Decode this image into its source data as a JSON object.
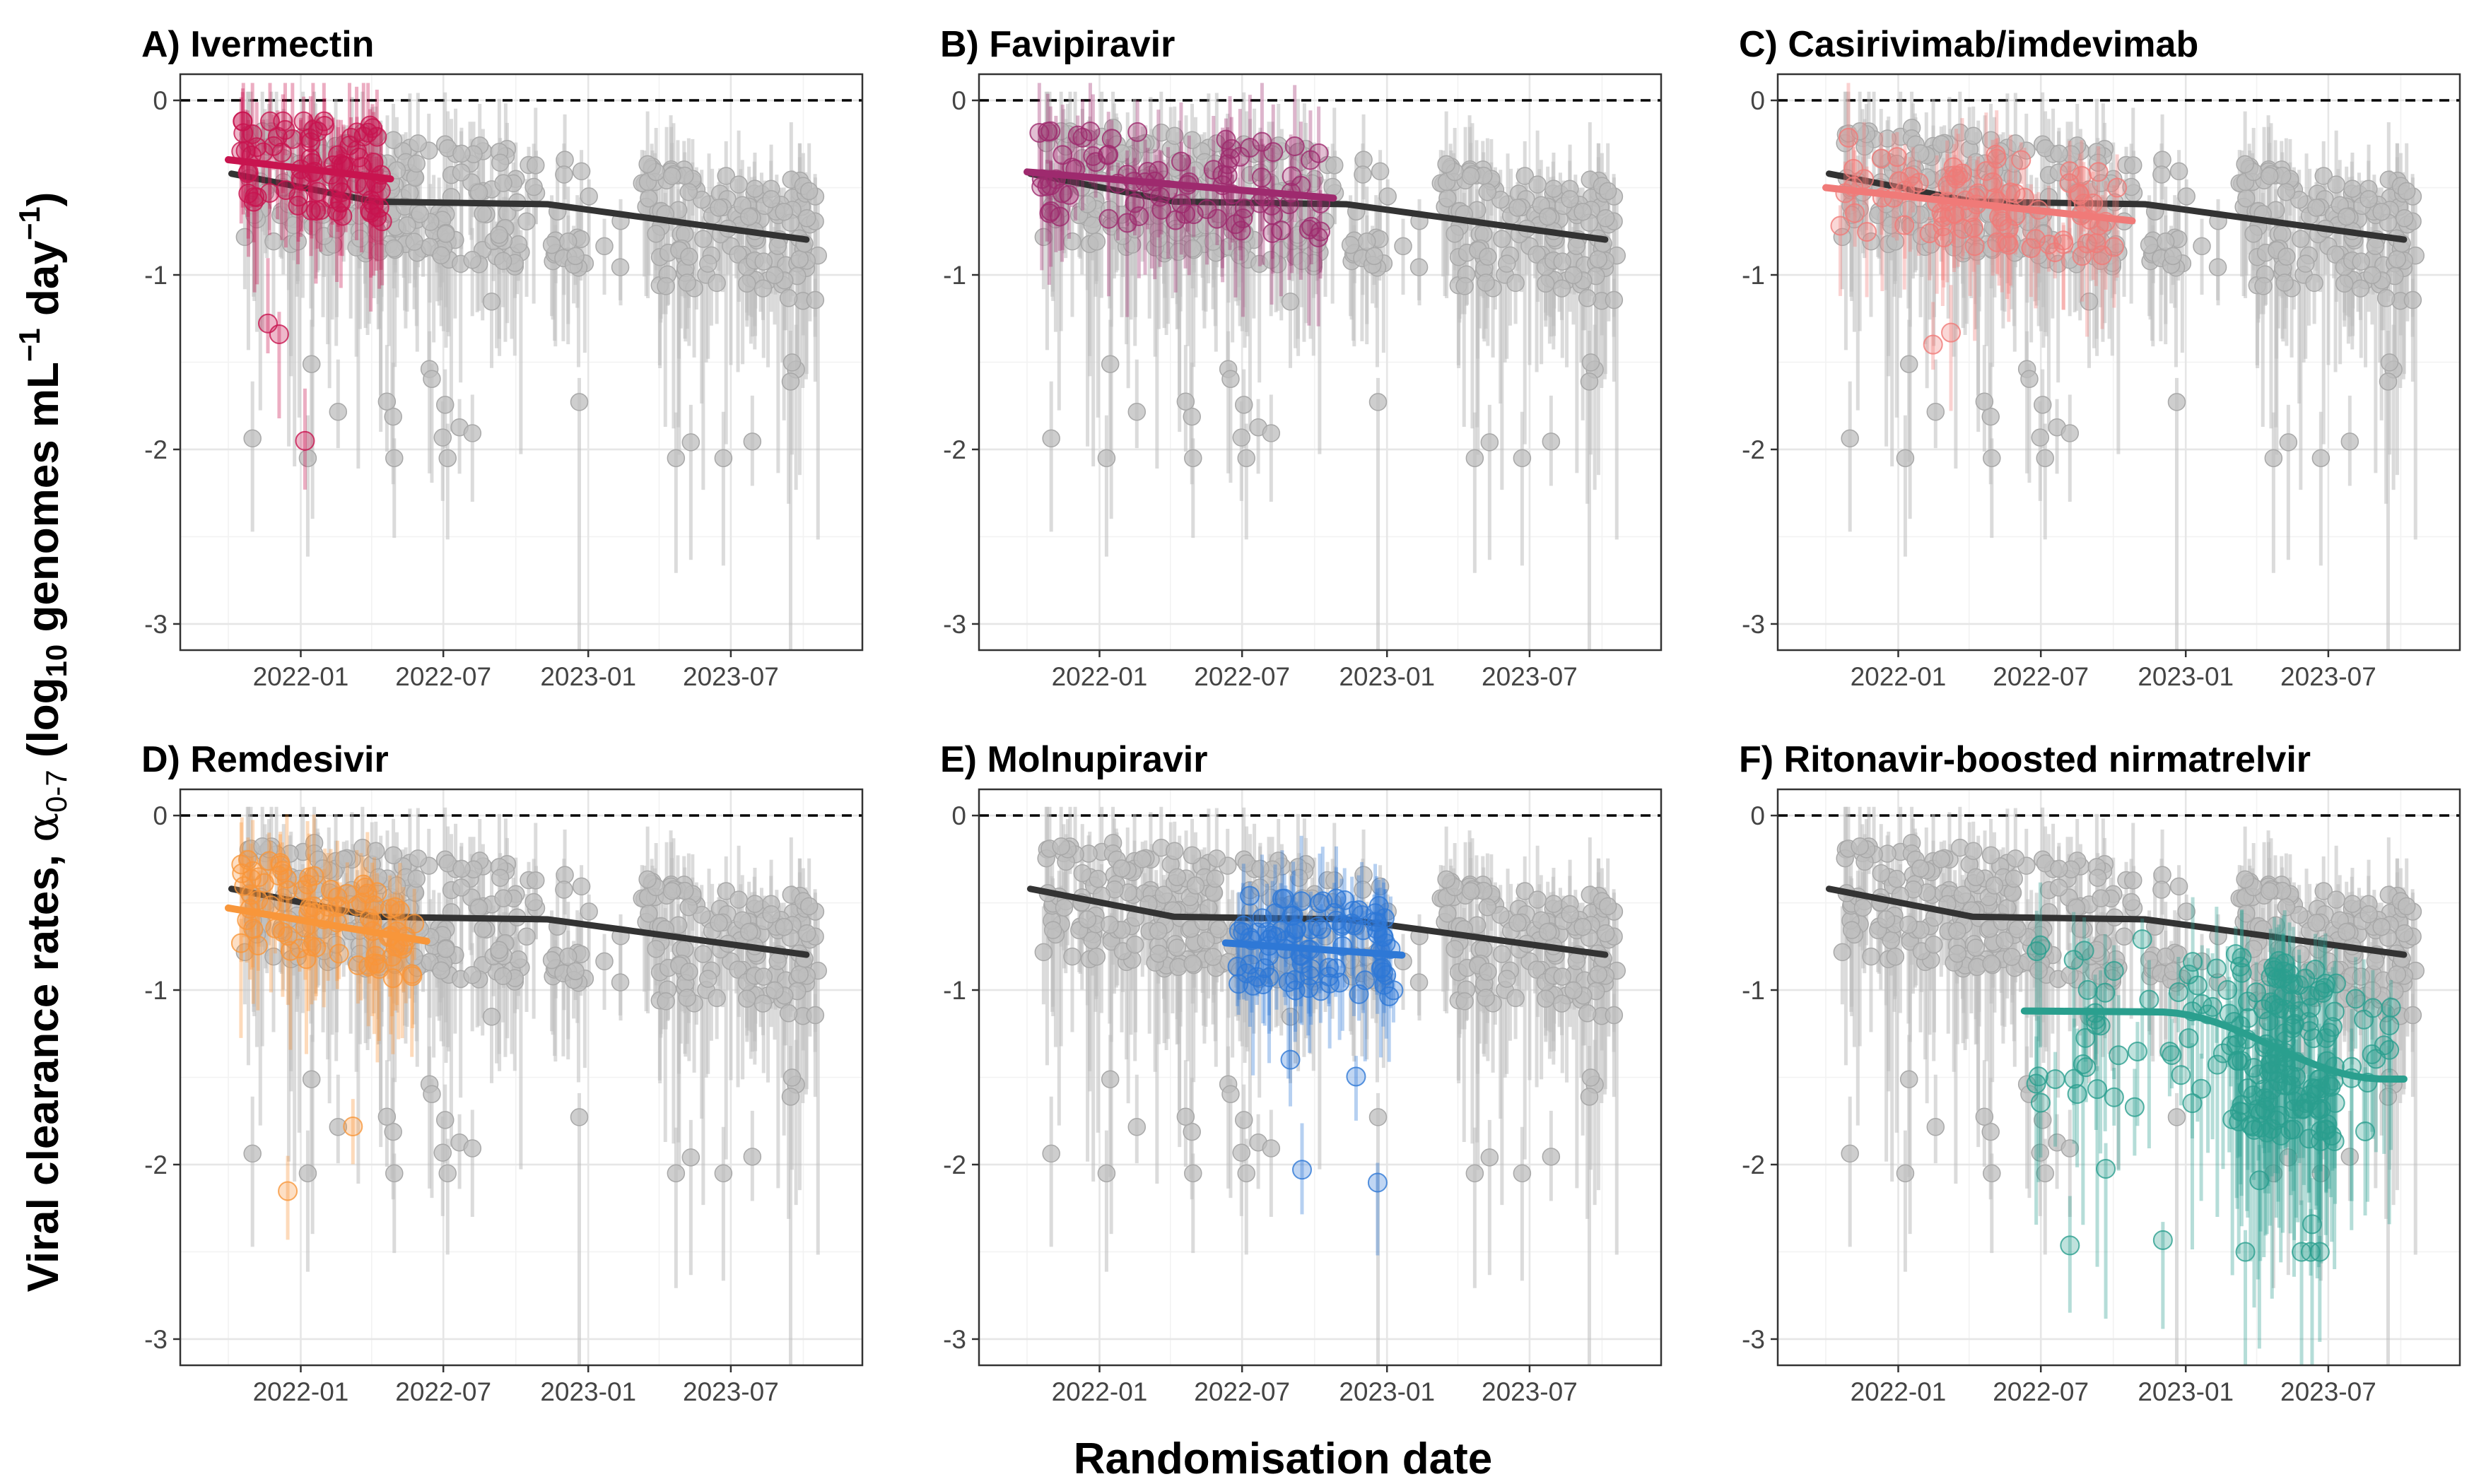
{
  "figure": {
    "xlabel": "Randomisation date",
    "ylabel_prefix": "Viral clearance rates, ",
    "ylabel_alpha": "α",
    "ylabel_alpha_sub": "0-7",
    "ylabel_open": " (log",
    "ylabel_log_sub": "10",
    "ylabel_mid": " genomes mL",
    "ylabel_ml_sup": "−1",
    "ylabel_day": " day",
    "ylabel_day_sup": "−1",
    "ylabel_close": ")"
  },
  "colors": {
    "background_points": "#bebebe",
    "background_trend": "#333333",
    "zero_line": "#000000"
  },
  "chart_data": [
    {
      "type": "scatter",
      "panel": "A",
      "title": "A) Ivermectin",
      "color": "#c8144f",
      "x_start": "2021-10-01",
      "x_end": "2022-04-25",
      "trend_start": -0.34,
      "trend_end": -0.45,
      "ylim": [
        -3.15,
        0.15
      ],
      "yticks": [
        0,
        -1,
        -2,
        -3
      ],
      "xticks": [
        "2022-01",
        "2022-07",
        "2023-01",
        "2023-07"
      ]
    },
    {
      "type": "scatter",
      "panel": "B",
      "title": "B) Favipiravir",
      "color": "#9e2a6e",
      "x_start": "2021-10-01",
      "x_end": "2022-10-25",
      "trend_start": -0.41,
      "trend_end": -0.56,
      "ylim": [
        -3.15,
        0.15
      ],
      "yticks": [
        0,
        -1,
        -2,
        -3
      ],
      "xticks": [
        "2022-01",
        "2022-07",
        "2023-01",
        "2023-07"
      ]
    },
    {
      "type": "scatter",
      "panel": "C",
      "title": "C) Casirivimab/imdevimab",
      "color": "#f07a78",
      "x_start": "2021-10-01",
      "x_end": "2022-10-25",
      "trend_start": -0.5,
      "trend_end": -0.69,
      "ylim": [
        -3.15,
        0.15
      ],
      "yticks": [
        0,
        -1,
        -2,
        -3
      ],
      "xticks": [
        "2022-01",
        "2022-07",
        "2023-01",
        "2023-07"
      ]
    },
    {
      "type": "scatter",
      "panel": "D",
      "title": "D) Remdesivir",
      "color": "#f8963a",
      "x_start": "2021-10-01",
      "x_end": "2022-06-10",
      "trend_start": -0.53,
      "trend_end": -0.72,
      "ylim": [
        -3.15,
        0.15
      ],
      "yticks": [
        0,
        -1,
        -2,
        -3
      ],
      "xticks": [
        "2022-01",
        "2022-07",
        "2023-01",
        "2023-07"
      ]
    },
    {
      "type": "scatter",
      "panel": "E",
      "title": "E) Molnupiravir",
      "color": "#2e78d6",
      "x_start": "2022-06-10",
      "x_end": "2023-01-20",
      "trend_start": -0.73,
      "trend_end": -0.8,
      "ylim": [
        -3.15,
        0.15
      ],
      "yticks": [
        0,
        -1,
        -2,
        -3
      ],
      "xticks": [
        "2022-01",
        "2022-07",
        "2023-01",
        "2023-07"
      ]
    },
    {
      "type": "scatter",
      "panel": "F",
      "title": "F) Ritonavir-boosted nirmatrelvir",
      "color": "#2a9f8e",
      "x_start": "2022-06-10",
      "x_end": "2023-10-05",
      "trend_start": -1.12,
      "trend_end": -1.51,
      "ylim": [
        -3.15,
        0.15
      ],
      "yticks": [
        0,
        -1,
        -2,
        -3
      ],
      "xticks": [
        "2022-01",
        "2022-07",
        "2023-01",
        "2023-07"
      ]
    }
  ]
}
